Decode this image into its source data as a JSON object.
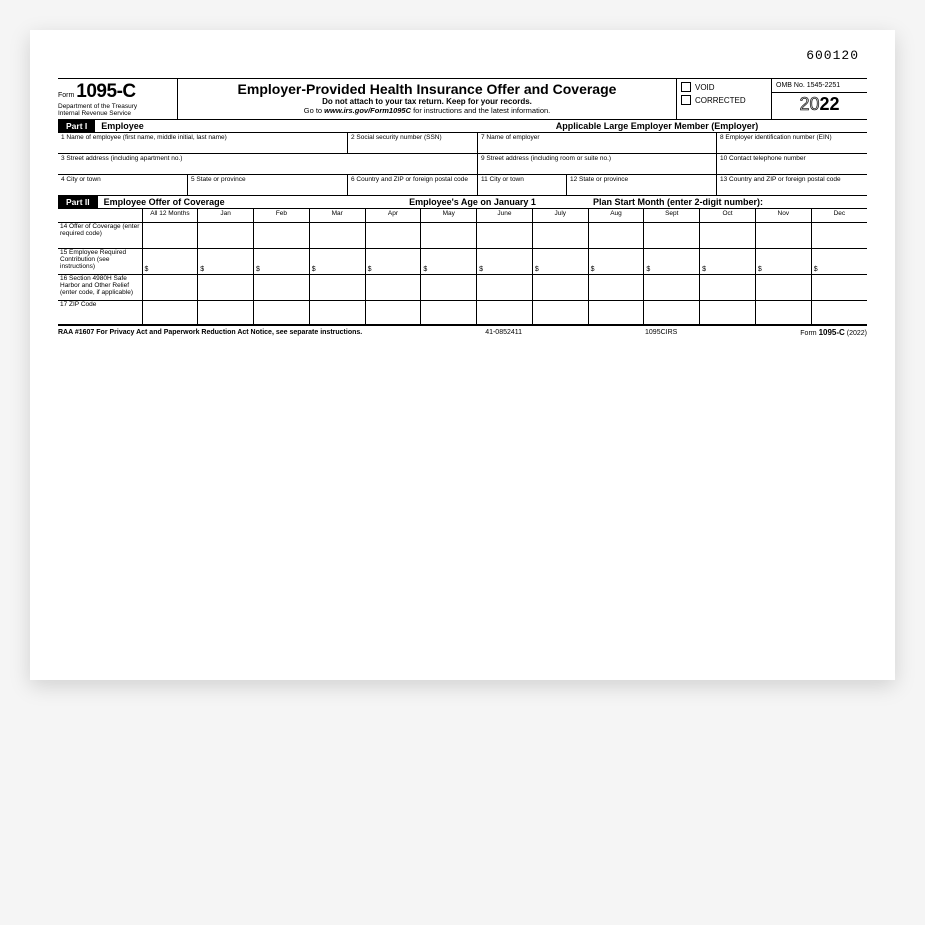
{
  "topcode": "600120",
  "formWord": "Form",
  "formNumber": "1095-C",
  "dept1": "Department of the Treasury",
  "dept2": "Internal Revenue Service",
  "title": "Employer-Provided Health Insurance Offer and Coverage",
  "sub1": "Do not attach to your tax return. Keep for your records.",
  "sub2a": "Go to ",
  "sub2b": "www.irs.gov/Form1095C",
  "sub2c": " for instructions and the latest information.",
  "voidLabel": "VOID",
  "correctedLabel": "CORRECTED",
  "omb": "OMB No. 1545-2251",
  "yearOutline": "20",
  "yearBold": "22",
  "part1Tag": "Part I",
  "part1Title": "Employee",
  "part1Right": "Applicable Large Employer Member (Employer)",
  "f1": "1  Name of employee (first name, middle initial, last name)",
  "f2": "2  Social security number (SSN)",
  "f7": "7  Name of employer",
  "f8": "8  Employer identification number (EIN)",
  "f3": "3  Street address (including apartment no.)",
  "f9": "9  Street address (including room or suite no.)",
  "f10": "10 Contact telephone number",
  "f4": "4  City or town",
  "f5": "5  State or province",
  "f6": "6  Country and ZIP or foreign postal code",
  "f11": "11 City or town",
  "f12": "12  State or province",
  "f13": "13 Country and ZIP or foreign postal code",
  "part2Tag": "Part II",
  "part2Title": "Employee Offer of Coverage",
  "part2Mid": "Employee's Age on January 1",
  "part2Right": "Plan Start Month (enter 2-digit number):",
  "months": [
    "All 12 Months",
    "Jan",
    "Feb",
    "Mar",
    "Apr",
    "May",
    "June",
    "July",
    "Aug",
    "Sept",
    "Oct",
    "Nov",
    "Dec"
  ],
  "r14": "14 Offer of Coverage (enter required code)",
  "r15": "15 Employee Required Contribution (see instructions)",
  "r16": "16 Section 4980H Safe Harbor and Other Relief (enter code, if applicable)",
  "r17": "17 ZIP Code",
  "footLeft": "RAA #1607  For Privacy Act and Paperwork Reduction Act Notice, see separate instructions.",
  "footMid1": "41-0852411",
  "footMid2": "1095CIRS",
  "footFormWord": "Form ",
  "footFormNum": "1095-C",
  "footYear": " (2022)"
}
